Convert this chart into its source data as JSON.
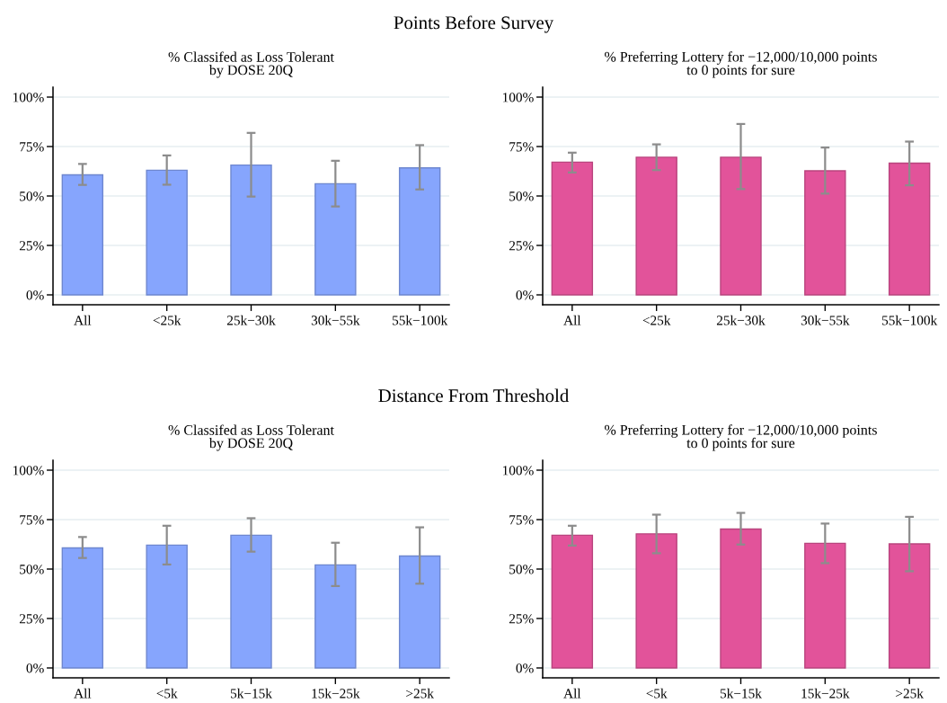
{
  "chart_data": [
    {
      "type": "bar",
      "title": "% Classifed as Loss Tolerant\nby DOSE 20Q",
      "annotations": [
        "Points Before Survey"
      ],
      "categories": [
        "All",
        "<25k",
        "25k−30k",
        "30k−55k",
        "55k−100k"
      ],
      "values": [
        60.7,
        63.0,
        65.6,
        56.2,
        64.2
      ],
      "errors": [
        [
          55.6,
          66.2
        ],
        [
          55.7,
          70.5
        ],
        [
          49.7,
          81.9
        ],
        [
          44.7,
          67.8
        ],
        [
          53.3,
          75.7
        ]
      ],
      "color": "#86a5fd",
      "ylim": [
        -5,
        105
      ],
      "yticks": [
        {
          "value": 0,
          "label": "0%"
        },
        {
          "value": 25,
          "label": "25%"
        },
        {
          "value": 50,
          "label": "50%"
        },
        {
          "value": 75,
          "label": "75%"
        },
        {
          "value": 100,
          "label": "100%"
        }
      ],
      "grid": "y"
    },
    {
      "type": "bar",
      "title": "% Preferring Lottery for −12,000/10,000 points\nto 0 points for sure",
      "categories": [
        "All",
        "<25k",
        "25k−30k",
        "30k−55k",
        "55k−100k"
      ],
      "values": [
        67.1,
        69.6,
        69.6,
        62.7,
        66.6
      ],
      "errors": [
        [
          61.9,
          71.9
        ],
        [
          63.1,
          76.1
        ],
        [
          53.5,
          86.4
        ],
        [
          51.2,
          74.5
        ],
        [
          55.4,
          77.5
        ]
      ],
      "color": "#e2539a",
      "ylim": [
        -5,
        105
      ],
      "yticks": [
        {
          "value": 0,
          "label": "0%"
        },
        {
          "value": 25,
          "label": "25%"
        },
        {
          "value": 50,
          "label": "50%"
        },
        {
          "value": 75,
          "label": "75%"
        },
        {
          "value": 100,
          "label": "100%"
        }
      ],
      "grid": "y"
    },
    {
      "type": "bar",
      "title": "% Classifed as Loss Tolerant\nby DOSE 20Q",
      "annotations": [
        "Distance From Threshold"
      ],
      "categories": [
        "All",
        "<5k",
        "5k−15k",
        "15k−25k",
        ">25k"
      ],
      "values": [
        60.7,
        62.1,
        67.1,
        52.1,
        56.6
      ],
      "errors": [
        [
          55.6,
          66.2
        ],
        [
          52.3,
          71.9
        ],
        [
          58.8,
          75.7
        ],
        [
          41.4,
          63.3
        ],
        [
          42.6,
          71.1
        ]
      ],
      "color": "#86a5fd",
      "ylim": [
        -5,
        105
      ],
      "yticks": [
        {
          "value": 0,
          "label": "0%"
        },
        {
          "value": 25,
          "label": "25%"
        },
        {
          "value": 50,
          "label": "50%"
        },
        {
          "value": 75,
          "label": "75%"
        },
        {
          "value": 100,
          "label": "100%"
        }
      ],
      "grid": "y"
    },
    {
      "type": "bar",
      "title": "% Preferring Lottery for −12,000/10,000 points\nto 0 points for sure",
      "categories": [
        "All",
        "<5k",
        "5k−15k",
        "15k−25k",
        ">25k"
      ],
      "values": [
        67.1,
        67.8,
        70.2,
        63.0,
        62.7
      ],
      "errors": [
        [
          61.9,
          71.9
        ],
        [
          58.0,
          77.5
        ],
        [
          62.4,
          78.4
        ],
        [
          53.0,
          73.0
        ],
        [
          48.9,
          76.4
        ]
      ],
      "color": "#e2539a",
      "ylim": [
        -5,
        105
      ],
      "yticks": [
        {
          "value": 0,
          "label": "0%"
        },
        {
          "value": 25,
          "label": "25%"
        },
        {
          "value": 50,
          "label": "50%"
        },
        {
          "value": 75,
          "label": "75%"
        },
        {
          "value": 100,
          "label": "100%"
        }
      ],
      "grid": "y"
    }
  ]
}
